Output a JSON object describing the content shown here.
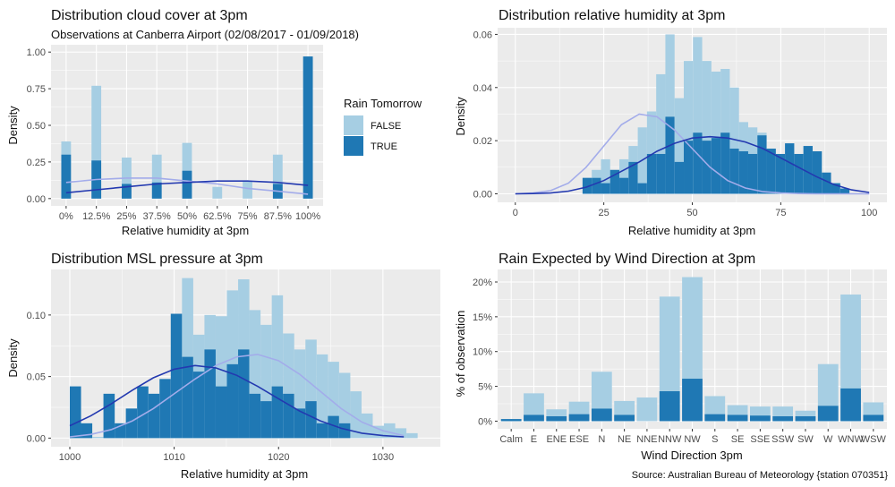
{
  "colors": {
    "false_fill": "#a6cee3",
    "true_fill": "#1f78b4",
    "false_line": "#a3acea",
    "true_line": "#2339b0",
    "panel": "#ebebeb",
    "grid": "#ffffff"
  },
  "legend": {
    "title": "Rain Tomorrow",
    "entries": [
      "FALSE",
      "TRUE"
    ]
  },
  "source": "Source: Australian Bureau of Meteorology {station 070351}",
  "chart_data": [
    {
      "type": "bar",
      "title": "Distribution cloud cover at 3pm",
      "subtitle": "Observations at Canberra Airport (02/08/2017 - 01/09/2018)",
      "xlabel": "Relative humidity at 3pm",
      "ylabel": "Density",
      "x_ticks": [
        "0%",
        "12.5%",
        "25%",
        "37.5%",
        "50%",
        "62.5%",
        "75%",
        "87.5%",
        "100%"
      ],
      "y_ticks": [
        "0.00",
        "0.25",
        "0.50",
        "0.75",
        "1.00"
      ],
      "xlim": [
        -0.0625,
        1.0625
      ],
      "ylim": [
        -0.05,
        1.05
      ],
      "bin_width": 0.04,
      "bin_centers": [
        0,
        0.125,
        0.25,
        0.375,
        0.5,
        0.625,
        0.75,
        0.875,
        1.0
      ],
      "series": [
        {
          "name": "FALSE",
          "values": [
            0.09,
            0.51,
            0.18,
            0.19,
            0.19,
            0.08,
            0.12,
            0.2,
            0.0
          ]
        },
        {
          "name": "TRUE",
          "values": [
            0.3,
            0.26,
            0.1,
            0.11,
            0.19,
            0.0,
            0.0,
            0.1,
            0.97
          ]
        }
      ],
      "density_x": [
        0,
        0.125,
        0.25,
        0.375,
        0.5,
        0.625,
        0.75,
        0.875,
        1.0
      ],
      "density_false": [
        0.11,
        0.13,
        0.14,
        0.14,
        0.12,
        0.1,
        0.07,
        0.05,
        0.03
      ],
      "density_true": [
        0.04,
        0.06,
        0.08,
        0.1,
        0.11,
        0.12,
        0.12,
        0.11,
        0.09
      ]
    },
    {
      "type": "bar",
      "title": "Distribution relative humidity at 3pm",
      "xlabel": "Relative humidity at 3pm",
      "ylabel": "Density",
      "x_ticks": [
        0,
        25,
        50,
        75,
        100
      ],
      "y_ticks": [
        "0.00",
        "0.02",
        "0.04",
        "0.06"
      ],
      "xlim": [
        -5,
        105
      ],
      "ylim": [
        -0.0032,
        0.0625
      ],
      "bin_start": 19,
      "bin_width": 2.6,
      "false_values": [
        0.006,
        0.009,
        0.013,
        0.009,
        0.013,
        0.018,
        0.025,
        0.031,
        0.045,
        0.06,
        0.036,
        0.05,
        0.059,
        0.05,
        0.046,
        0.047,
        0.04,
        0.027,
        0.025,
        0.023,
        0.016,
        0.009,
        0.01,
        0.006,
        0.005,
        0.004,
        0.004,
        0.003,
        0.002
      ],
      "true_values": [
        0.006,
        0.006,
        0.004,
        0.009,
        0.006,
        0.012,
        0.004,
        0.015,
        0.015,
        0.029,
        0.012,
        0.02,
        0.023,
        0.02,
        0.021,
        0.023,
        0.017,
        0.016,
        0.015,
        0.022,
        0.017,
        0.015,
        0.019,
        0.015,
        0.018,
        0.016,
        0.008,
        0.004,
        0.002
      ],
      "density_x": [
        0,
        5,
        10,
        15,
        20,
        25,
        30,
        35,
        40,
        45,
        50,
        55,
        60,
        65,
        70,
        75,
        80,
        85,
        90,
        95,
        100
      ],
      "density_false": [
        0.0,
        0.0003,
        0.0012,
        0.004,
        0.01,
        0.018,
        0.026,
        0.03,
        0.029,
        0.024,
        0.017,
        0.01,
        0.005,
        0.0022,
        0.0008,
        0.0003,
        0.0001,
        0.0,
        0.0,
        0.0,
        0.0
      ],
      "density_true": [
        0.0,
        0.0001,
        0.0003,
        0.001,
        0.0025,
        0.005,
        0.0085,
        0.012,
        0.016,
        0.019,
        0.021,
        0.0215,
        0.021,
        0.0195,
        0.017,
        0.0135,
        0.01,
        0.0065,
        0.0035,
        0.0015,
        0.0005
      ]
    },
    {
      "type": "bar",
      "title": "Distribution MSL pressure at 3pm",
      "xlabel": "Relative humidity at 3pm",
      "ylabel": "Density",
      "x_ticks": [
        1000,
        1010,
        1020,
        1030
      ],
      "y_ticks": [
        "0.00",
        "0.05",
        "0.10"
      ],
      "xlim": [
        998.2,
        1035.5
      ],
      "ylim": [
        -0.007,
        0.137
      ],
      "bin_start": 1000,
      "bin_width": 1.075,
      "false_values": [
        0.0,
        0.004,
        0.001,
        0.002,
        0.004,
        0.009,
        0.016,
        0.028,
        0.042,
        0.073,
        0.13,
        0.084,
        0.1,
        0.099,
        0.12,
        0.129,
        0.104,
        0.092,
        0.116,
        0.085,
        0.072,
        0.08,
        0.068,
        0.062,
        0.053,
        0.038,
        0.02,
        0.01,
        0.012,
        0.008,
        0.004
      ],
      "true_values": [
        0.042,
        0.012,
        0.0,
        0.036,
        0.012,
        0.024,
        0.042,
        0.036,
        0.048,
        0.101,
        0.066,
        0.054,
        0.072,
        0.042,
        0.06,
        0.072,
        0.036,
        0.03,
        0.042,
        0.036,
        0.024,
        0.03,
        0.012,
        0.018,
        0.012,
        0.0,
        0.0,
        0.0,
        0.0,
        0.0,
        0.0
      ],
      "density_x": [
        1000,
        1002,
        1004,
        1006,
        1008,
        1010,
        1012,
        1014,
        1016,
        1018,
        1020,
        1022,
        1024,
        1026,
        1028,
        1030,
        1032
      ],
      "density_false": [
        0.001,
        0.003,
        0.007,
        0.014,
        0.024,
        0.036,
        0.048,
        0.059,
        0.066,
        0.068,
        0.063,
        0.052,
        0.038,
        0.024,
        0.013,
        0.006,
        0.002
      ],
      "density_true": [
        0.01,
        0.018,
        0.028,
        0.039,
        0.049,
        0.056,
        0.059,
        0.057,
        0.051,
        0.042,
        0.032,
        0.022,
        0.014,
        0.008,
        0.004,
        0.002,
        0.001
      ]
    },
    {
      "type": "bar",
      "title": "Rain Expected by Wind Direction at 3pm",
      "xlabel": "Wind Direction 3pm",
      "ylabel": "% of observation",
      "y_ticks": [
        "0%",
        "5%",
        "10%",
        "15%",
        "20%"
      ],
      "ylim": [
        -0.011,
        0.218
      ],
      "categories": [
        "Calm",
        "E",
        "ENE",
        "ESE",
        "N",
        "NE",
        "NNE",
        "NNW",
        "NW",
        "S",
        "SE",
        "SSE",
        "SSW",
        "SW",
        "W",
        "WNW",
        "WSW"
      ],
      "series": [
        {
          "name": "FALSE",
          "values": [
            0.0,
            0.031,
            0.01,
            0.018,
            0.053,
            0.02,
            0.034,
            0.136,
            0.146,
            0.026,
            0.014,
            0.013,
            0.014,
            0.008,
            0.06,
            0.135,
            0.018
          ]
        },
        {
          "name": "TRUE",
          "values": [
            0.003,
            0.009,
            0.007,
            0.01,
            0.018,
            0.009,
            0.0,
            0.043,
            0.061,
            0.01,
            0.009,
            0.008,
            0.007,
            0.007,
            0.022,
            0.047,
            0.009
          ]
        }
      ]
    }
  ]
}
